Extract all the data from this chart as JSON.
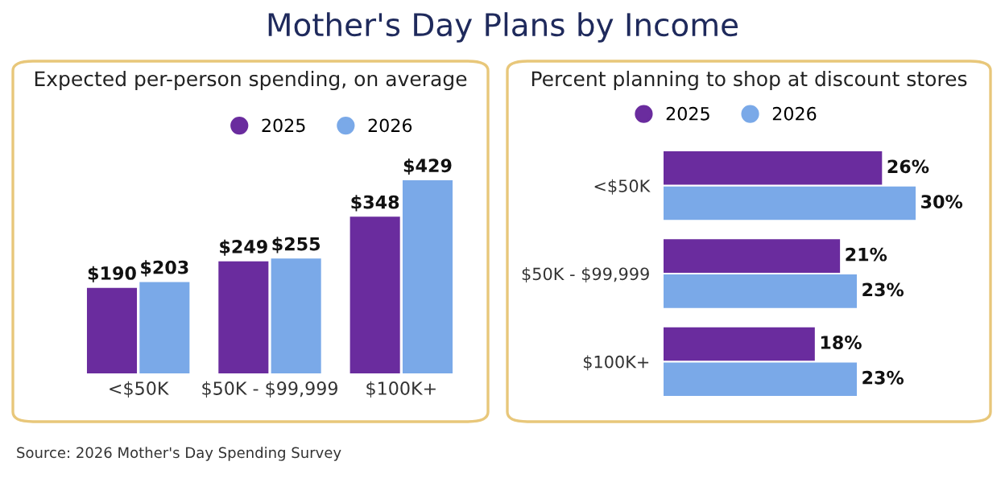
{
  "chart_data": [
    {
      "type": "bar",
      "title": "Mother's Day Plans by Income",
      "subtitle": "Expected per-person spending, on average",
      "categories": [
        "<$50K",
        "$50K - $99,999",
        "$100K+"
      ],
      "series": [
        {
          "name": "2025",
          "color": "#6a2c9e",
          "values": [
            190,
            249,
            348
          ],
          "value_labels": [
            "$190",
            "$249",
            "$348"
          ]
        },
        {
          "name": "2026",
          "color": "#7aa9e8",
          "values": [
            203,
            255,
            429
          ],
          "value_labels": [
            "$203",
            "$255",
            "$429"
          ]
        }
      ],
      "legend": "top",
      "grid": false,
      "annotations": [
        "Source: 2026 Mother's Day Spending Survey"
      ]
    },
    {
      "type": "bar",
      "orientation": "horizontal",
      "subtitle": "Percent planning to shop at discount stores",
      "categories": [
        "<$50K",
        "$50K - $99,999",
        "$100K+"
      ],
      "series": [
        {
          "name": "2025",
          "color": "#6a2c9e",
          "values": [
            26,
            21,
            18
          ],
          "value_labels": [
            "26%",
            "21%",
            "18%"
          ]
        },
        {
          "name": "2026",
          "color": "#7aa9e8",
          "values": [
            30,
            23,
            23
          ],
          "value_labels": [
            "30%",
            "23%",
            "23%"
          ]
        }
      ],
      "legend": "top left",
      "grid": false
    }
  ]
}
